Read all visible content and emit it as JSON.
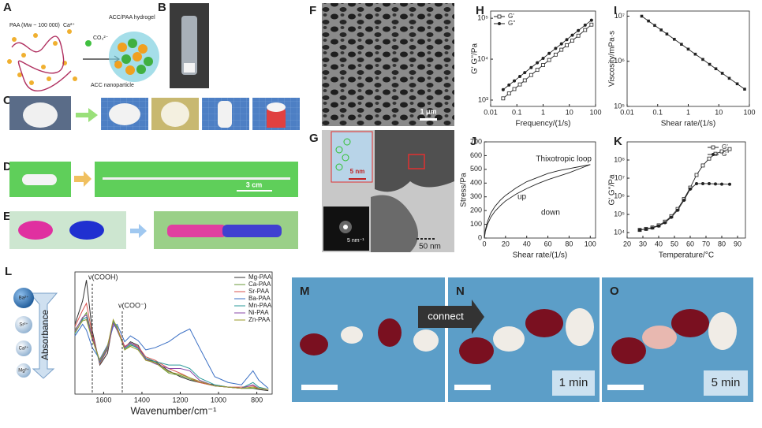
{
  "panels": {
    "A": {
      "label": "A",
      "texts": [
        "PAA (Mw ~ 100 000)",
        "Ca²⁺",
        "CO₃²⁻",
        "ACC/PAA hydrogel",
        "ACC nanoparticle"
      ]
    },
    "B": {
      "label": "B"
    },
    "C": {
      "label": "C"
    },
    "D": {
      "label": "D",
      "texts": [
        "3 cm"
      ]
    },
    "E": {
      "label": "E"
    },
    "F": {
      "label": "F",
      "texts": [
        "1 μm"
      ]
    },
    "G": {
      "label": "G",
      "texts": [
        "5 nm",
        "5 nm⁻¹",
        "50 nm"
      ]
    },
    "M": {
      "label": "M"
    },
    "N": {
      "label": "N",
      "texts": [
        "connect",
        "1 min"
      ]
    },
    "O": {
      "label": "O",
      "texts": [
        "5 min"
      ]
    }
  },
  "chart_data": [
    {
      "type": "line",
      "label": "H",
      "xlabel": "Frequency/(1/s)",
      "ylabel": "G' G''/Pa",
      "xlog": true,
      "ylog": true,
      "xlim": [
        0.01,
        100
      ],
      "ylim": [
        700,
        150000
      ],
      "xticks": [
        0.01,
        0.1,
        1,
        10,
        100
      ],
      "yticks": [
        {
          "value": 1000,
          "label": "10³"
        },
        {
          "value": 10000,
          "label": "10⁴"
        },
        {
          "value": 100000,
          "label": "10⁵"
        }
      ],
      "legend": "upper left",
      "x": [
        0.03,
        0.05,
        0.08,
        0.13,
        0.2,
        0.35,
        0.6,
        1,
        1.7,
        3,
        5,
        8,
        13,
        22,
        40,
        70
      ],
      "series": [
        {
          "name": "G'",
          "color": "#222222",
          "marker": "open-square",
          "values": [
            1100,
            1450,
            1860,
            2410,
            3030,
            4090,
            5470,
            7170,
            9530,
            12900,
            17000,
            21900,
            28300,
            37500,
            51600,
            69900
          ]
        },
        {
          "name": "G''",
          "color": "#222222",
          "marker": "filled-circle",
          "values": [
            1800,
            2330,
            2950,
            3770,
            4690,
            6210,
            8150,
            10500,
            13800,
            18300,
            23700,
            30100,
            38500,
            50000,
            67700,
            89800
          ]
        }
      ]
    },
    {
      "type": "line",
      "label": "I",
      "xlabel": "Shear rate/(1/s)",
      "ylabel": "Viscosity/mPa·s",
      "xlog": true,
      "ylog": true,
      "xlim": [
        0.01,
        100
      ],
      "ylim": [
        100000,
        13000000
      ],
      "xticks": [
        0.01,
        0.1,
        1,
        10,
        100
      ],
      "yticks": [
        {
          "value": 100000,
          "label": "10⁵"
        },
        {
          "value": 1000000,
          "label": "10⁶"
        },
        {
          "value": 10000000,
          "label": "10⁷"
        }
      ],
      "x": [
        0.03,
        0.05,
        0.08,
        0.13,
        0.2,
        0.35,
        0.6,
        1,
        1.7,
        3,
        5,
        8,
        13,
        22,
        40,
        70
      ],
      "series": [
        {
          "color": "#222222",
          "marker": "filled-square",
          "values": [
            10000000,
            7830000,
            6240000,
            4950000,
            4020000,
            3080000,
            2380000,
            1860000,
            1440000,
            1100000,
            857000,
            683000,
            543000,
            420000,
            317000,
            241000
          ]
        }
      ]
    },
    {
      "type": "line",
      "label": "J",
      "xlabel": "Shear rate/(1/s)",
      "ylabel": "Stress/Pa",
      "xlim": [
        0,
        105
      ],
      "ylim": [
        0,
        700
      ],
      "xticks": [
        0,
        20,
        40,
        60,
        80,
        100
      ],
      "yticks": [
        0,
        100,
        200,
        300,
        400,
        500,
        600,
        700
      ],
      "annotations": [
        "Thixotropic loop",
        "up",
        "down"
      ],
      "x": [
        0,
        1,
        3,
        6,
        10,
        15,
        20,
        30,
        40,
        50,
        60,
        70,
        80,
        90,
        100
      ],
      "series": [
        {
          "color": "#222222",
          "marker": "none",
          "values": [
            0,
            60,
            120,
            180,
            230,
            275,
            310,
            365,
            410,
            440,
            470,
            490,
            505,
            520,
            535
          ]
        },
        {
          "color": "#222222",
          "marker": "none",
          "values": [
            0,
            50,
            100,
            150,
            195,
            235,
            270,
            320,
            360,
            395,
            425,
            450,
            475,
            505,
            535
          ]
        }
      ]
    },
    {
      "type": "line",
      "label": "K",
      "xlabel": "Temperature/°C",
      "ylabel": "G' G''/Pa",
      "ylog": true,
      "xlim": [
        20,
        95
      ],
      "ylim": [
        5000,
        1000000000
      ],
      "xticks": [
        20,
        30,
        40,
        50,
        60,
        70,
        80,
        90
      ],
      "yticks": [
        {
          "value": 10000,
          "label": "10⁴"
        },
        {
          "value": 100000,
          "label": "10⁵"
        },
        {
          "value": 1000000,
          "label": "10⁶"
        },
        {
          "value": 10000000,
          "label": "10⁷"
        },
        {
          "value": 100000000,
          "label": "10⁸"
        }
      ],
      "legend": "upper right",
      "x": [
        28,
        32,
        36,
        40,
        44,
        48,
        52,
        56,
        60,
        64,
        68,
        72,
        76,
        80,
        85
      ],
      "series": [
        {
          "name": "G'",
          "color": "#222222",
          "marker": "open-square",
          "values": [
            14000,
            16000,
            19000,
            25000,
            40000,
            80000,
            200000,
            700000,
            3000000,
            15000000,
            50000000,
            120000000,
            220000000,
            300000000,
            400000000
          ]
        },
        {
          "name": "G''",
          "color": "#222222",
          "marker": "filled-circle",
          "values": [
            14000,
            15500,
            18000,
            23000,
            35000,
            70000,
            170000,
            600000,
            2500000,
            5000000,
            5000000,
            5000000,
            4800000,
            4700000,
            4600000
          ]
        }
      ]
    },
    {
      "type": "line",
      "label": "L",
      "xlabel": "Wavenumber/cm⁻¹",
      "xlim": [
        1750,
        720
      ],
      "ylim": [
        0,
        1.05
      ],
      "xticks": [
        1600,
        1400,
        1200,
        1000,
        800
      ],
      "legend": "upper right",
      "annotations": [
        "ν(COOH)",
        "ν(COO⁻)",
        "Absorbance",
        "Ba²⁺",
        "Sr²⁺",
        "Ca²⁺",
        "Mg²⁺"
      ],
      "x": [
        1750,
        1710,
        1690,
        1660,
        1620,
        1580,
        1550,
        1530,
        1490,
        1460,
        1420,
        1380,
        1330,
        1260,
        1200,
        1150,
        1100,
        1020,
        950,
        880,
        820,
        790,
        740
      ],
      "series": [
        {
          "name": "Mg-PAA",
          "color": "#333333",
          "marker": "none",
          "values": [
            0.6,
            0.8,
            0.98,
            0.55,
            0.25,
            0.35,
            0.62,
            0.55,
            0.4,
            0.45,
            0.42,
            0.3,
            0.28,
            0.2,
            0.15,
            0.12,
            0.1,
            0.08,
            0.06,
            0.05,
            0.05,
            0.04,
            0.03
          ]
        },
        {
          "name": "Ca-PAA",
          "color": "#6a9a3a",
          "marker": "none",
          "values": [
            0.55,
            0.65,
            0.7,
            0.5,
            0.28,
            0.4,
            0.63,
            0.58,
            0.38,
            0.42,
            0.4,
            0.3,
            0.27,
            0.18,
            0.16,
            0.13,
            0.1,
            0.07,
            0.06,
            0.05,
            0.05,
            0.05,
            0.04
          ]
        },
        {
          "name": "Sr-PAA",
          "color": "#d9534f",
          "marker": "none",
          "values": [
            0.58,
            0.72,
            0.78,
            0.52,
            0.26,
            0.38,
            0.6,
            0.57,
            0.41,
            0.44,
            0.41,
            0.32,
            0.29,
            0.22,
            0.18,
            0.14,
            0.1,
            0.07,
            0.06,
            0.06,
            0.07,
            0.05,
            0.04
          ]
        },
        {
          "name": "Ba-PAA",
          "color": "#3a6fc4",
          "marker": "none",
          "values": [
            0.5,
            0.6,
            0.55,
            0.4,
            0.3,
            0.42,
            0.58,
            0.6,
            0.45,
            0.5,
            0.46,
            0.38,
            0.4,
            0.45,
            0.52,
            0.56,
            0.4,
            0.15,
            0.1,
            0.08,
            0.2,
            0.12,
            0.05
          ]
        },
        {
          "name": "Mn-PAA",
          "color": "#2a9a9a",
          "marker": "none",
          "values": [
            0.52,
            0.64,
            0.66,
            0.48,
            0.27,
            0.39,
            0.62,
            0.56,
            0.39,
            0.43,
            0.39,
            0.31,
            0.28,
            0.25,
            0.25,
            0.22,
            0.14,
            0.08,
            0.06,
            0.05,
            0.1,
            0.06,
            0.04
          ]
        },
        {
          "name": "Ni-PAA",
          "color": "#8a4aa8",
          "marker": "none",
          "values": [
            0.54,
            0.66,
            0.68,
            0.49,
            0.28,
            0.4,
            0.61,
            0.55,
            0.4,
            0.44,
            0.4,
            0.3,
            0.26,
            0.22,
            0.22,
            0.2,
            0.12,
            0.07,
            0.06,
            0.05,
            0.08,
            0.05,
            0.04
          ]
        },
        {
          "name": "Zn-PAA",
          "color": "#9a9a2a",
          "marker": "none",
          "values": [
            0.53,
            0.63,
            0.64,
            0.47,
            0.29,
            0.41,
            0.64,
            0.57,
            0.38,
            0.41,
            0.38,
            0.29,
            0.27,
            0.19,
            0.17,
            0.14,
            0.11,
            0.07,
            0.06,
            0.05,
            0.06,
            0.05,
            0.04
          ]
        }
      ]
    }
  ]
}
